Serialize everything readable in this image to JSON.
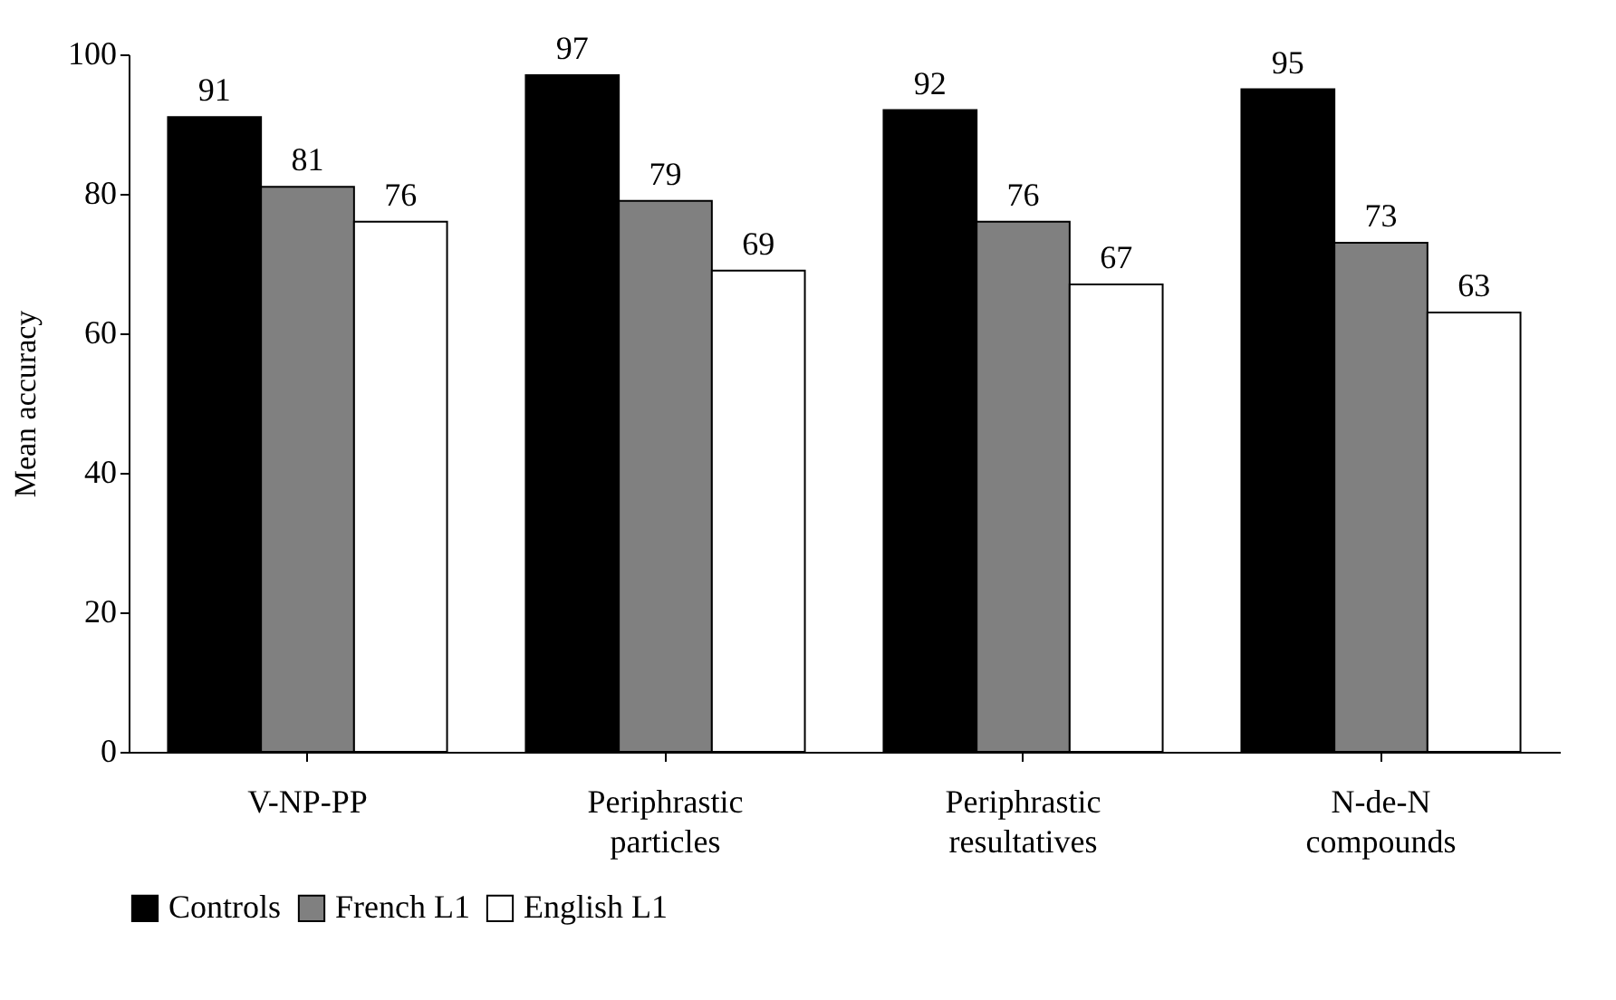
{
  "chart_data": {
    "type": "bar",
    "ylabel": "Mean accuracy",
    "categories": [
      "V-NP-PP",
      "Periphrastic particles",
      "Periphrastic resultatives",
      "N-de-N compounds"
    ],
    "series": [
      {
        "name": "Controls",
        "color": "#000000",
        "values": [
          91,
          97,
          92,
          95
        ]
      },
      {
        "name": "French L1",
        "color": "#808080",
        "values": [
          81,
          79,
          76,
          73
        ]
      },
      {
        "name": "English L1",
        "color": "#ffffff",
        "values": [
          76,
          69,
          67,
          63
        ]
      }
    ],
    "ylim": [
      0,
      100
    ],
    "yticks": [
      0,
      20,
      40,
      60,
      80,
      100
    ],
    "grid": false,
    "legend": "bottom",
    "data_labels": true
  }
}
